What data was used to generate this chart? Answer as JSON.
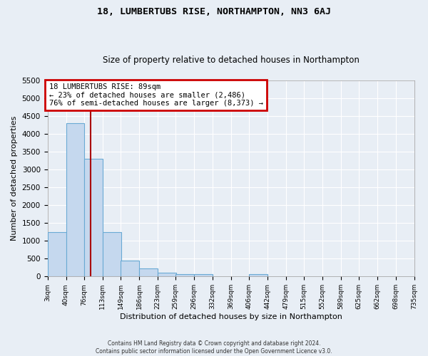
{
  "title": "18, LUMBERTUBS RISE, NORTHAMPTON, NN3 6AJ",
  "subtitle": "Size of property relative to detached houses in Northampton",
  "xlabel": "Distribution of detached houses by size in Northampton",
  "ylabel": "Number of detached properties",
  "footer_line1": "Contains HM Land Registry data © Crown copyright and database right 2024.",
  "footer_line2": "Contains public sector information licensed under the Open Government Licence v3.0.",
  "annotation_title": "18 LUMBERTUBS RISE: 89sqm",
  "annotation_line2": "← 23% of detached houses are smaller (2,486)",
  "annotation_line3": "76% of semi-detached houses are larger (8,373) →",
  "property_size": 89,
  "bar_left_edges": [
    3,
    40,
    76,
    113,
    149,
    186,
    223,
    259,
    296,
    332,
    369,
    406,
    442,
    479,
    515,
    552,
    589,
    625,
    662,
    698
  ],
  "bar_heights": [
    1250,
    4300,
    3300,
    1250,
    450,
    220,
    100,
    75,
    60,
    0,
    0,
    60,
    0,
    0,
    0,
    0,
    0,
    0,
    0,
    0
  ],
  "bin_width": 37,
  "bar_color": "#c5d8ee",
  "bar_edgecolor": "#6aaad4",
  "red_line_color": "#aa0000",
  "annotation_box_edgecolor": "#cc0000",
  "background_color": "#e8eef5",
  "grid_color": "#ffffff",
  "ylim_max": 5500,
  "yticks": [
    0,
    500,
    1000,
    1500,
    2000,
    2500,
    3000,
    3500,
    4000,
    4500,
    5000,
    5500
  ],
  "xlim_min": 3,
  "xlim_max": 735,
  "tick_positions": [
    3,
    40,
    76,
    113,
    149,
    186,
    223,
    259,
    296,
    332,
    369,
    406,
    442,
    479,
    515,
    552,
    589,
    625,
    662,
    698,
    735
  ],
  "tick_labels": [
    "3sqm",
    "40sqm",
    "76sqm",
    "113sqm",
    "149sqm",
    "186sqm",
    "223sqm",
    "259sqm",
    "296sqm",
    "332sqm",
    "369sqm",
    "406sqm",
    "442sqm",
    "479sqm",
    "515sqm",
    "552sqm",
    "589sqm",
    "625sqm",
    "662sqm",
    "698sqm",
    "735sqm"
  ]
}
